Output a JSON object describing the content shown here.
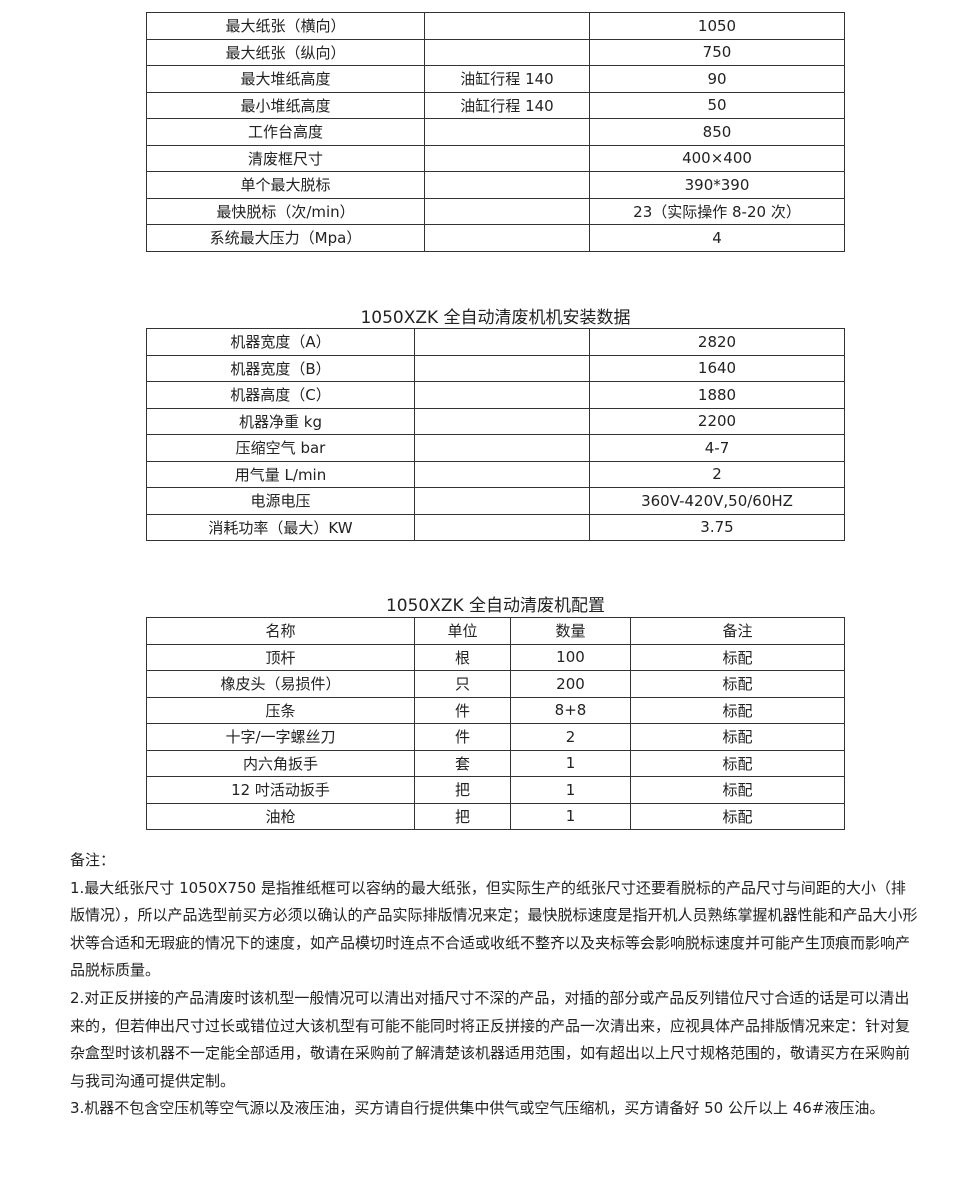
{
  "table1": {
    "rows": [
      [
        "最大纸张（横向）",
        "",
        "1050"
      ],
      [
        "最大纸张（纵向）",
        "",
        "750"
      ],
      [
        "最大堆纸高度",
        "油缸行程 140",
        "90"
      ],
      [
        "最小堆纸高度",
        "油缸行程 140",
        "50"
      ],
      [
        "工作台高度",
        "",
        "850"
      ],
      [
        "清废框尺寸",
        "",
        "400×400"
      ],
      [
        "单个最大脱标",
        "",
        "390*390"
      ],
      [
        "最快脱标（次/min）",
        "",
        "23（实际操作 8-20 次）"
      ],
      [
        "系统最大压力（Mpa）",
        "",
        "4"
      ]
    ]
  },
  "table2": {
    "title": "1050XZK 全自动清废机机安装数据",
    "rows": [
      [
        "机器宽度（A）",
        "",
        "2820"
      ],
      [
        "机器宽度（B）",
        "",
        "1640"
      ],
      [
        "机器高度（C）",
        "",
        "1880"
      ],
      [
        "机器净重 kg",
        "",
        "2200"
      ],
      [
        "压缩空气 bar",
        "",
        "4-7"
      ],
      [
        "用气量 L/min",
        "",
        "2"
      ],
      [
        "电源电压",
        "",
        "360V-420V,50/60HZ"
      ],
      [
        "消耗功率（最大）KW",
        "",
        "3.75"
      ]
    ]
  },
  "table3": {
    "title": "1050XZK 全自动清废机配置",
    "headers": [
      "名称",
      "单位",
      "数量",
      "备注"
    ],
    "rows": [
      [
        "顶杆",
        "根",
        "100",
        "标配"
      ],
      [
        "橡皮头（易损件）",
        "只",
        "200",
        "标配"
      ],
      [
        "压条",
        "件",
        "8+8",
        "标配"
      ],
      [
        "十字/一字螺丝刀",
        "件",
        "2",
        "标配"
      ],
      [
        "内六角扳手",
        "套",
        "1",
        "标配"
      ],
      [
        "12 吋活动扳手",
        "把",
        "1",
        "标配"
      ],
      [
        "油枪",
        "把",
        "1",
        "标配"
      ]
    ]
  },
  "notes": {
    "heading": "备注：",
    "items": [
      "1.最大纸张尺寸 1050X750 是指推纸框可以容纳的最大纸张，但实际生产的纸张尺寸还要看脱标的产品尺寸与间距的大小（排版情况），所以产品选型前买方必须以确认的产品实际排版情况来定；最快脱标速度是指开机人员熟练掌握机器性能和产品大小形状等合适和无瑕疵的情况下的速度，如产品模切时连点不合适或收纸不整齐以及夹标等会影响脱标速度并可能产生顶痕而影响产品脱标质量。",
      "2.对正反拼接的产品清废时该机型一般情况可以清出对插尺寸不深的产品，对插的部分或产品反列错位尺寸合适的话是可以清出来的，但若伸出尺寸过长或错位过大该机型有可能不能同时将正反拼接的产品一次清出来，应视具体产品排版情况来定：针对复杂盒型时该机器不一定能全部适用，敬请在采购前了解清楚该机器适用范围，如有超出以上尺寸规格范围的，敬请买方在采购前与我司沟通可提供定制。",
      "3.机器不包含空压机等空气源以及液压油，买方请自行提供集中供气或空气压缩机，买方请备好 50 公斤以上 46#液压油。"
    ]
  }
}
